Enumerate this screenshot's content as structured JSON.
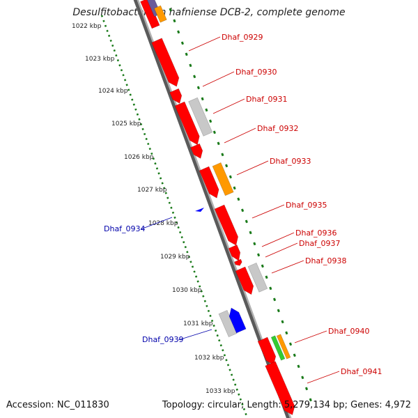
{
  "title": "Desulfitobacterium hafniense DCB-2, complete genome",
  "footer": {
    "accession": "Accession: NC_011830",
    "summary": "Topology: circular; Length: 5,279,134 bp; Genes: 4,972"
  },
  "colors": {
    "backbone": "#8a8a8a",
    "ruler": "#1a7a1a",
    "forward_label": "#cc0000",
    "reverse_label": "#0000aa",
    "cds_red": "#ff0000",
    "cds_grey": "#c8c8c8",
    "cds_orange": "#ff9900",
    "cds_blue": "#0000ff",
    "cds_green": "#33cc33",
    "cds_purple": "#6a5a9a"
  },
  "kbp_ticks": [
    "1022 kbp",
    "1023 kbp",
    "1024 kbp",
    "1025 kbp",
    "1026 kbp",
    "1027 kbp",
    "1028 kbp",
    "1029 kbp",
    "1030 kbp",
    "1031 kbp",
    "1032 kbp",
    "1033 kbp"
  ],
  "forward_labels": [
    "Dhaf_0929",
    "Dhaf_0930",
    "Dhaf_0931",
    "Dhaf_0932",
    "Dhaf_0933",
    "Dhaf_0935",
    "Dhaf_0936",
    "Dhaf_0937",
    "Dhaf_0938",
    "Dhaf_0940",
    "Dhaf_0941"
  ],
  "reverse_labels": [
    "Dhaf_0934",
    "Dhaf_0939"
  ]
}
